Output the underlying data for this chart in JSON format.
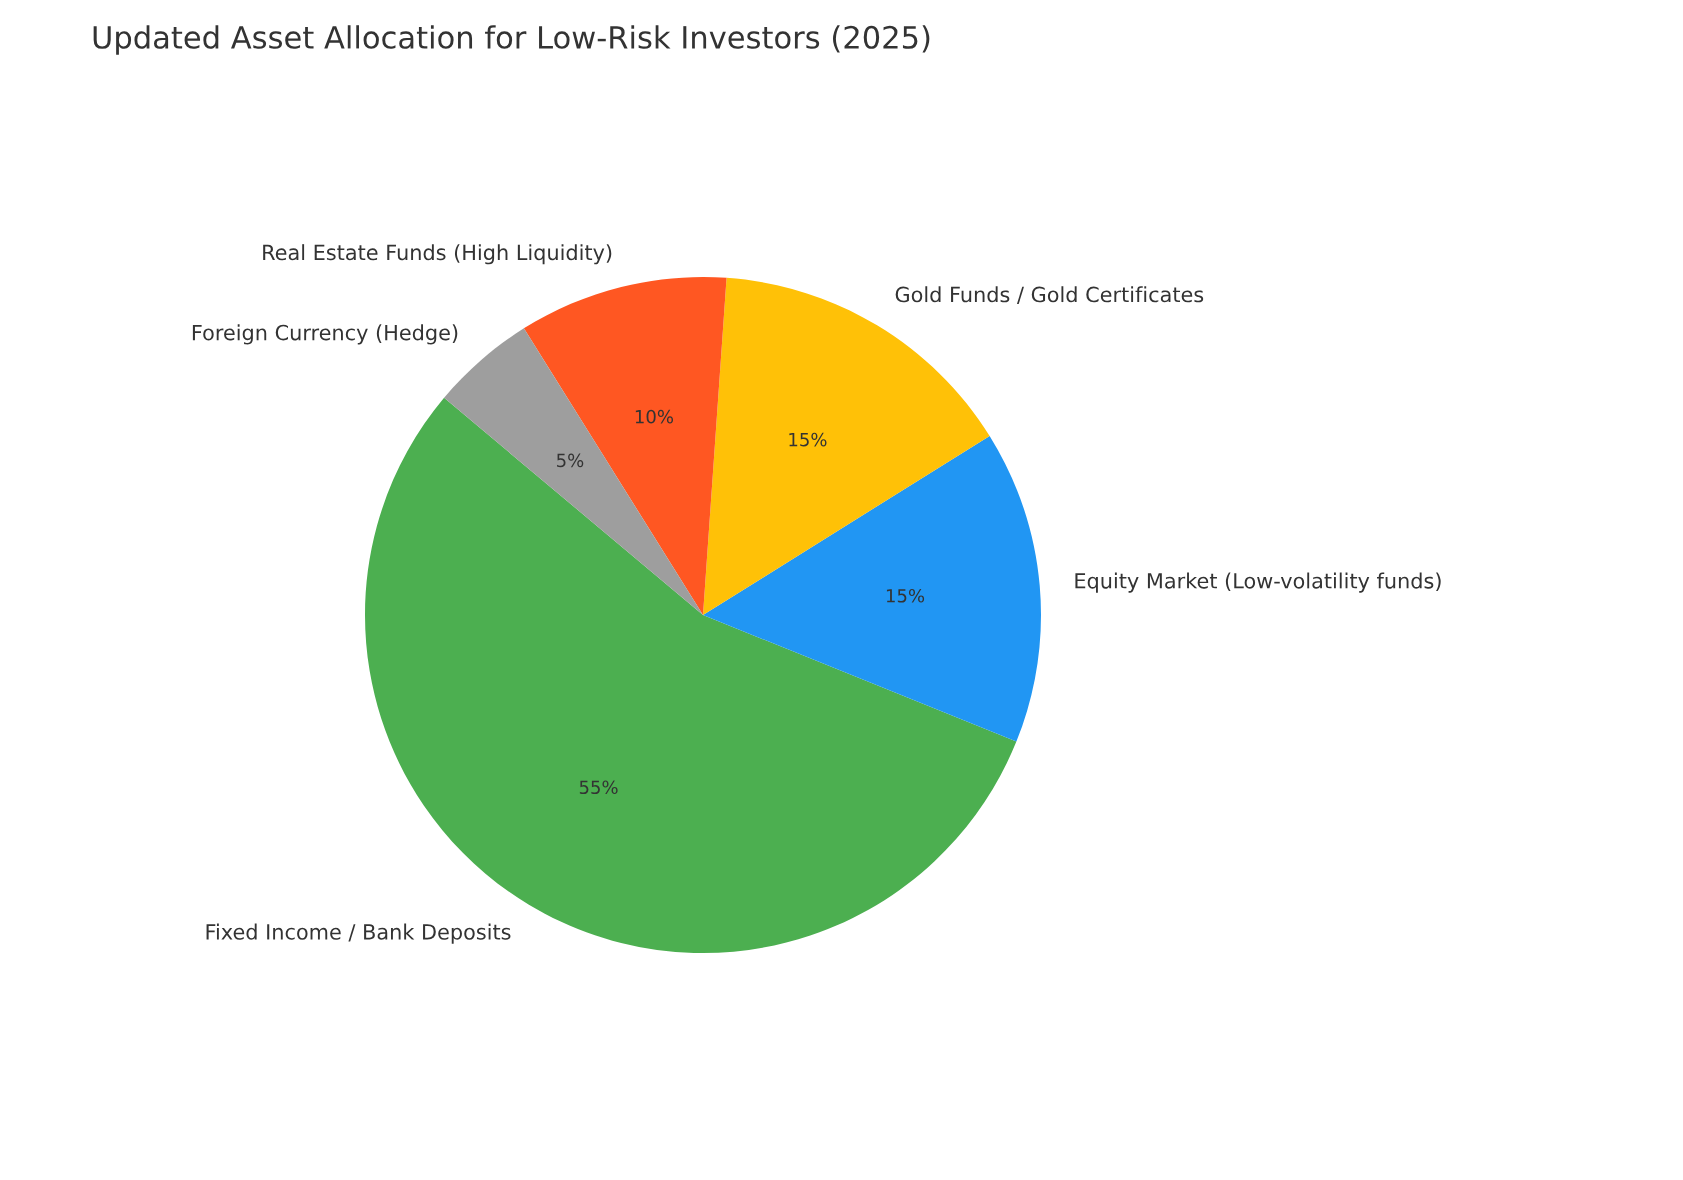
{
  "chart_data": {
    "type": "pie",
    "title": "Updated Asset Allocation for Low-Risk Investors (2025)",
    "categories": [
      "Fixed Income / Bank Deposits",
      "Equity Market (Low-volatility funds)",
      "Gold Funds / Gold Certificates",
      "Real Estate Funds (High Liquidity)",
      "Foreign Currency (Hedge)"
    ],
    "values": [
      55,
      15,
      15,
      10,
      5
    ],
    "colors": [
      "#4caf50",
      "#2196f3",
      "#ffc107",
      "#ff5722",
      "#9e9e9e"
    ],
    "value_labels": [
      "55%",
      "15%",
      "15%",
      "10%",
      "5%"
    ]
  }
}
